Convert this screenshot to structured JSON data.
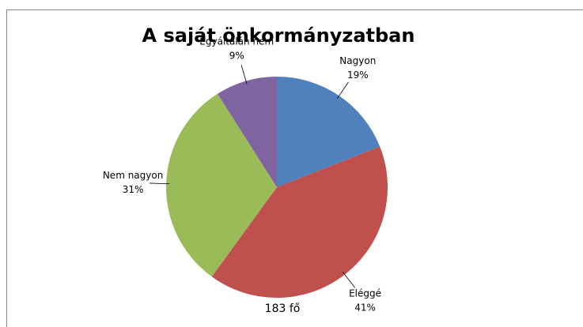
{
  "chart_data": {
    "type": "pie",
    "title": "A saját önkormányzatban",
    "categories": [
      "Nagyon",
      "Eléggé",
      "Nem nagyon",
      "Egyáltalán nem"
    ],
    "values": [
      19,
      41,
      31,
      9
    ],
    "value_labels": [
      "19%",
      "41%",
      "31%",
      "9%"
    ],
    "colors": [
      "#4f81bd",
      "#c0504d",
      "#9bbb59",
      "#8064a2"
    ],
    "annotation": "183 fő"
  }
}
